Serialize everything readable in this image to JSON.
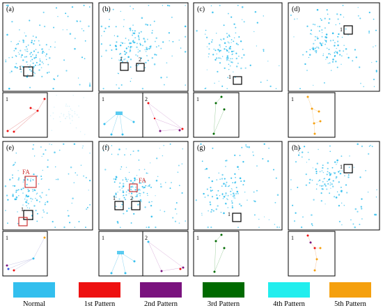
{
  "figure": {
    "row1": {
      "panels": [
        {
          "tag": "(a)",
          "box_labels": [
            "1"
          ],
          "inset_labels": [
            "1",
            ""
          ]
        },
        {
          "tag": "(b)",
          "box_labels": [
            "1",
            "2"
          ],
          "inset_labels": [
            "1",
            "2"
          ]
        },
        {
          "tag": "(c)",
          "box_labels": [
            "1"
          ],
          "inset_labels": [
            "1"
          ]
        },
        {
          "tag": "(d)",
          "box_labels": [
            "1"
          ],
          "inset_labels": [
            "1"
          ]
        }
      ]
    },
    "row2": {
      "panels": [
        {
          "tag": "(e)",
          "box_labels": [
            "1"
          ],
          "annot": "FA",
          "inset_labels": [
            "1"
          ]
        },
        {
          "tag": "(f)",
          "box_labels": [
            "1",
            "2"
          ],
          "annot": "FA",
          "inset_labels": [
            "1",
            "2"
          ]
        },
        {
          "tag": "(g)",
          "box_labels": [
            "1"
          ],
          "inset_labels": [
            "1"
          ]
        },
        {
          "tag": "(h)",
          "box_labels": [
            "1"
          ],
          "inset_labels": [
            "1"
          ]
        }
      ]
    }
  },
  "legend": [
    {
      "label": "Normal",
      "color": "#33bfee"
    },
    {
      "label": "1st Pattern",
      "color": "#ee1111"
    },
    {
      "label": "2nd Pattern",
      "color": "#7a137e"
    },
    {
      "label": "3rd Pattern",
      "color": "#006a00"
    },
    {
      "label": "4th Pattern",
      "color": "#22eeee"
    },
    {
      "label": "5th Pattern",
      "color": "#f5a00e"
    }
  ]
}
